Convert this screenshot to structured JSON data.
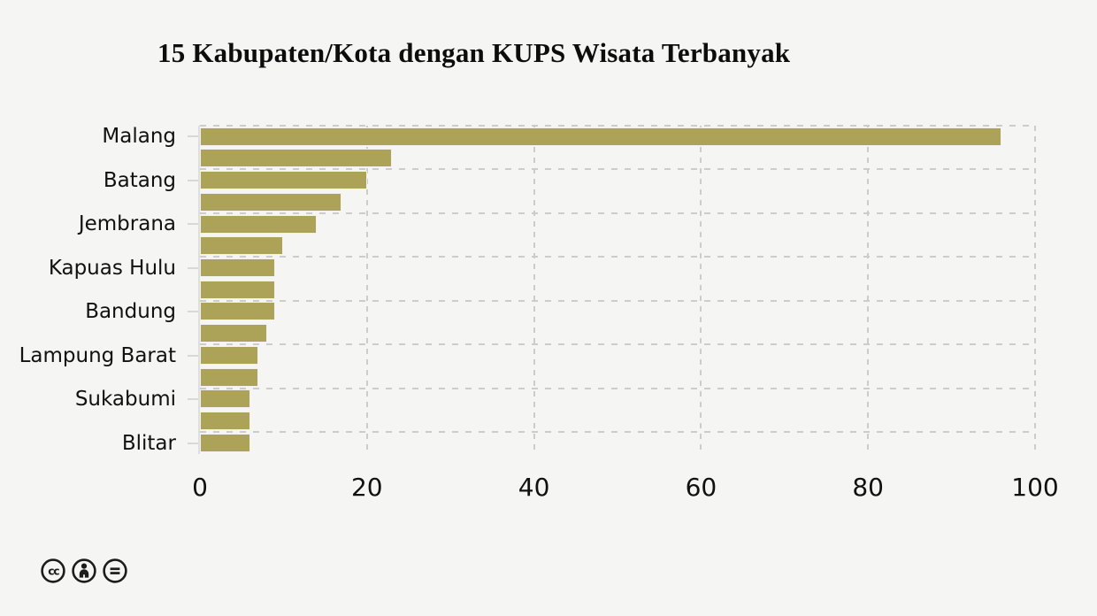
{
  "title": "15 Kabupaten/Kota dengan KUPS Wisata Terbanyak",
  "chart_data": {
    "type": "bar",
    "orientation": "horizontal",
    "title": "15 Kabupaten/Kota dengan KUPS Wisata Terbanyak",
    "bars": [
      {
        "label": "Malang",
        "value": 96
      },
      {
        "label": "",
        "value": 23
      },
      {
        "label": "Batang",
        "value": 20
      },
      {
        "label": "",
        "value": 17
      },
      {
        "label": "Jembrana",
        "value": 14
      },
      {
        "label": "",
        "value": 10
      },
      {
        "label": "Kapuas Hulu",
        "value": 9
      },
      {
        "label": "",
        "value": 9
      },
      {
        "label": "Bandung",
        "value": 9
      },
      {
        "label": "",
        "value": 8
      },
      {
        "label": "Lampung Barat",
        "value": 7
      },
      {
        "label": "",
        "value": 7
      },
      {
        "label": "Sukabumi",
        "value": 6
      },
      {
        "label": "",
        "value": 6
      },
      {
        "label": "Blitar",
        "value": 6
      }
    ],
    "x_ticks": [
      0,
      20,
      40,
      60,
      80,
      100
    ],
    "xlim": [
      0,
      100
    ],
    "xlabel": "",
    "ylabel": "",
    "grid": "dashed",
    "legend": "none",
    "colors": {
      "bar_fill": "#aca258",
      "bar_edge": "#f2f1ee",
      "grid_line": "#cccccc",
      "axis_line": "#dedede",
      "tick_mark": "#d8d8d8",
      "text": "#111111",
      "background": "#f5f5f3"
    }
  },
  "footer": {
    "license": "Creative Commons BY-ND",
    "icons": [
      {
        "name": "cc-icon"
      },
      {
        "name": "attribution-icon"
      },
      {
        "name": "no-derivatives-icon"
      }
    ]
  }
}
